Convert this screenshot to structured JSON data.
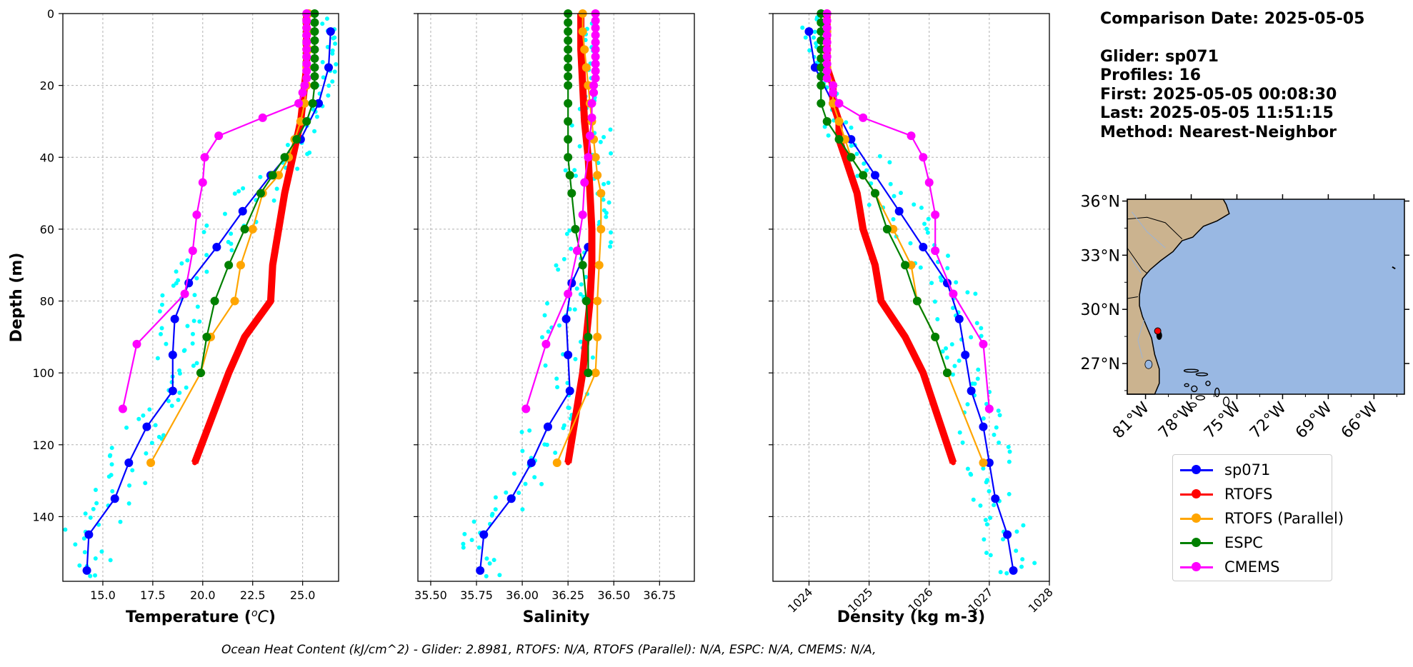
{
  "info": {
    "comparison": "Comparison Date: 2025-05-05",
    "glider": "Glider: sp071",
    "profiles": "Profiles: 16",
    "first": "First: 2025-05-05 00:08:30",
    "last": "Last: 2025-05-05 11:51:15",
    "method": "Method: Nearest-Neighbor"
  },
  "footer": "Ocean Heat Content (kJ/cm^2) - Glider: 2.8981,  RTOFS: N/A,  RTOFS (Parallel): N/A,  ESPC: N/A,  CMEMS: N/A,",
  "legend": [
    {
      "name": "sp071",
      "color": "#0000ff"
    },
    {
      "name": "RTOFS",
      "color": "#ff0000"
    },
    {
      "name": "RTOFS (Parallel)",
      "color": "#ffa500"
    },
    {
      "name": "ESPC",
      "color": "#008000"
    },
    {
      "name": "CMEMS",
      "color": "#ff00ff"
    }
  ],
  "colors": {
    "profiles": "#00ffff",
    "land": "#cbb38f",
    "ocean": "#99b8e3",
    "grid": "#b0b0b0",
    "glider_marker": "#ff0000"
  },
  "map": {
    "lat_ticks": [
      "36°N",
      "33°N",
      "30°N",
      "27°N"
    ],
    "lon_ticks": [
      "81°W",
      "78°W",
      "75°W",
      "72°W",
      "69°W",
      "66°W"
    ],
    "glider_lon": -80.2,
    "glider_lat": 28.8
  },
  "chart_data": [
    {
      "type": "line",
      "xlabel": "Temperature (°C)",
      "ylabel": "Depth (m)",
      "xlim": [
        13,
        26.8
      ],
      "ylim": [
        158,
        0
      ],
      "xticks": [
        15.0,
        17.5,
        20.0,
        22.5,
        25.0
      ],
      "xtick_labels": [
        "15.0",
        "17.5",
        "20.0",
        "22.5",
        "25.0"
      ],
      "yticks": [
        0,
        20,
        40,
        60,
        80,
        100,
        120,
        140
      ],
      "grid": true,
      "series": [
        {
          "name": "sp071",
          "depth": [
            5,
            15,
            25,
            35,
            45,
            55,
            65,
            75,
            85,
            95,
            105,
            115,
            125,
            135,
            145,
            155
          ],
          "values": [
            26.4,
            26.3,
            25.8,
            24.9,
            23.4,
            22.0,
            20.7,
            19.3,
            18.6,
            18.5,
            18.5,
            17.2,
            16.3,
            15.6,
            14.3,
            14.2
          ]
        },
        {
          "name": "RTOFS",
          "depth": [
            0,
            5,
            10,
            15,
            20,
            25,
            30,
            35,
            40,
            50,
            60,
            70,
            80,
            90,
            100,
            125
          ],
          "values": [
            25.2,
            25.2,
            25.2,
            25.2,
            25.1,
            25.0,
            24.9,
            24.7,
            24.5,
            24.1,
            23.8,
            23.5,
            23.4,
            22.1,
            21.3,
            19.6
          ]
        },
        {
          "name": "RTOFS (Parallel)",
          "depth": [
            0,
            5,
            10,
            15,
            20,
            25,
            30,
            35,
            40,
            45,
            50,
            60,
            70,
            80,
            90,
            100,
            125
          ],
          "values": [
            25.3,
            25.3,
            25.3,
            25.2,
            25.2,
            25.1,
            24.9,
            24.6,
            24.3,
            23.8,
            23.0,
            22.5,
            21.9,
            21.6,
            20.4,
            19.9,
            17.4
          ]
        },
        {
          "name": "ESPC",
          "depth": [
            0,
            2.5,
            5,
            7.5,
            10,
            12.5,
            15,
            17.5,
            20,
            25,
            30,
            35,
            40,
            45,
            50,
            60,
            70,
            80,
            90,
            100
          ],
          "values": [
            25.6,
            25.6,
            25.6,
            25.6,
            25.6,
            25.6,
            25.6,
            25.6,
            25.6,
            25.5,
            25.2,
            24.7,
            24.1,
            23.5,
            22.9,
            22.1,
            21.3,
            20.6,
            20.2,
            19.9
          ]
        },
        {
          "name": "CMEMS",
          "depth": [
            0,
            2,
            4,
            6,
            8,
            10,
            12,
            14,
            16,
            18,
            20,
            22,
            25,
            29,
            34,
            40,
            47,
            56,
            66,
            78,
            92,
            110
          ],
          "values": [
            25.2,
            25.2,
            25.2,
            25.2,
            25.2,
            25.2,
            25.2,
            25.2,
            25.2,
            25.2,
            25.1,
            25.0,
            24.8,
            23.0,
            20.8,
            20.1,
            20.0,
            19.7,
            19.5,
            19.1,
            16.7,
            16.0
          ]
        }
      ]
    },
    {
      "type": "line",
      "xlabel": "Salinity",
      "xlim": [
        35.43,
        36.94
      ],
      "ylim": [
        158,
        0
      ],
      "xticks": [
        35.5,
        35.75,
        36.0,
        36.25,
        36.5,
        36.75
      ],
      "xtick_labels": [
        "35.50",
        "35.75",
        "36.00",
        "36.25",
        "36.50",
        "36.75"
      ],
      "yticks": [
        0,
        20,
        40,
        60,
        80,
        100,
        120,
        140
      ],
      "grid": true,
      "series": [
        {
          "name": "sp071",
          "depth": [
            65,
            75,
            85,
            95,
            105,
            115,
            125,
            135,
            145,
            155
          ],
          "values": [
            36.36,
            36.27,
            36.24,
            36.25,
            36.26,
            36.14,
            36.05,
            35.94,
            35.79,
            35.77
          ]
        },
        {
          "name": "RTOFS",
          "depth": [
            0,
            10,
            20,
            30,
            40,
            50,
            60,
            70,
            80,
            90,
            100,
            125
          ],
          "values": [
            36.32,
            36.32,
            36.33,
            36.34,
            36.36,
            36.37,
            36.38,
            36.38,
            36.37,
            36.35,
            36.33,
            36.25
          ]
        },
        {
          "name": "RTOFS (Parallel)",
          "depth": [
            0,
            5,
            10,
            15,
            20,
            25,
            30,
            35,
            40,
            45,
            50,
            60,
            70,
            80,
            90,
            100,
            125
          ],
          "values": [
            36.33,
            36.33,
            36.34,
            36.35,
            36.36,
            36.37,
            36.38,
            36.39,
            36.4,
            36.41,
            36.43,
            36.43,
            36.42,
            36.41,
            36.41,
            36.4,
            36.19
          ]
        },
        {
          "name": "ESPC",
          "depth": [
            0,
            2.5,
            5,
            7.5,
            10,
            12.5,
            15,
            17.5,
            20,
            25,
            30,
            35,
            40,
            45,
            50,
            60,
            70,
            80,
            90,
            100
          ],
          "values": [
            36.25,
            36.25,
            36.25,
            36.25,
            36.25,
            36.25,
            36.25,
            36.25,
            36.25,
            36.25,
            36.25,
            36.25,
            36.25,
            36.26,
            36.27,
            36.29,
            36.33,
            36.35,
            36.36,
            36.36
          ]
        },
        {
          "name": "CMEMS",
          "depth": [
            0,
            2,
            4,
            6,
            8,
            10,
            12,
            14,
            16,
            18,
            20,
            22,
            25,
            29,
            34,
            40,
            47,
            56,
            66,
            78,
            92,
            110
          ],
          "values": [
            36.4,
            36.4,
            36.4,
            36.4,
            36.4,
            36.4,
            36.4,
            36.4,
            36.4,
            36.4,
            36.39,
            36.39,
            36.38,
            36.38,
            36.37,
            36.36,
            36.34,
            36.33,
            36.3,
            36.25,
            36.13,
            36.02
          ]
        }
      ]
    },
    {
      "type": "line",
      "xlabel": "Density (kg m-3)",
      "xlim": [
        1023.4,
        1028.0
      ],
      "ylim": [
        158,
        0
      ],
      "xticks": [
        1024,
        1025,
        1026,
        1027,
        1028
      ],
      "xtick_labels": [
        "1024",
        "1025",
        "1026",
        "1027",
        "1028"
      ],
      "yticks": [
        0,
        20,
        40,
        60,
        80,
        100,
        120,
        140
      ],
      "grid": true,
      "series": [
        {
          "name": "sp071",
          "depth": [
            5,
            15,
            25,
            35,
            45,
            55,
            65,
            75,
            85,
            95,
            105,
            115,
            125,
            135,
            145,
            155
          ],
          "values": [
            1024.0,
            1024.1,
            1024.4,
            1024.7,
            1025.1,
            1025.5,
            1025.9,
            1026.3,
            1026.5,
            1026.6,
            1026.7,
            1026.9,
            1027.0,
            1027.1,
            1027.3,
            1027.4
          ]
        },
        {
          "name": "RTOFS",
          "depth": [
            0,
            5,
            10,
            15,
            20,
            25,
            30,
            35,
            40,
            50,
            60,
            70,
            80,
            90,
            100,
            125
          ],
          "values": [
            1024.3,
            1024.3,
            1024.3,
            1024.3,
            1024.4,
            1024.4,
            1024.5,
            1024.5,
            1024.6,
            1024.8,
            1024.9,
            1025.1,
            1025.2,
            1025.6,
            1025.9,
            1026.4
          ]
        },
        {
          "name": "RTOFS (Parallel)",
          "depth": [
            0,
            5,
            10,
            15,
            20,
            25,
            30,
            35,
            40,
            45,
            50,
            60,
            70,
            80,
            90,
            100,
            125
          ],
          "values": [
            1024.3,
            1024.3,
            1024.3,
            1024.3,
            1024.4,
            1024.4,
            1024.5,
            1024.6,
            1024.7,
            1024.9,
            1025.1,
            1025.4,
            1025.7,
            1025.8,
            1026.1,
            1026.3,
            1026.9
          ]
        },
        {
          "name": "ESPC",
          "depth": [
            0,
            2.5,
            5,
            7.5,
            10,
            12.5,
            15,
            17.5,
            20,
            25,
            30,
            35,
            40,
            45,
            50,
            60,
            70,
            80,
            90,
            100
          ],
          "values": [
            1024.2,
            1024.2,
            1024.2,
            1024.2,
            1024.2,
            1024.2,
            1024.2,
            1024.2,
            1024.2,
            1024.2,
            1024.3,
            1024.5,
            1024.7,
            1024.9,
            1025.1,
            1025.3,
            1025.6,
            1025.8,
            1026.1,
            1026.3
          ]
        },
        {
          "name": "CMEMS",
          "depth": [
            0,
            2,
            4,
            6,
            8,
            10,
            12,
            14,
            16,
            18,
            20,
            22,
            25,
            29,
            34,
            40,
            47,
            56,
            66,
            78,
            92,
            110
          ],
          "values": [
            1024.3,
            1024.3,
            1024.3,
            1024.3,
            1024.3,
            1024.3,
            1024.3,
            1024.3,
            1024.3,
            1024.3,
            1024.4,
            1024.4,
            1024.5,
            1024.9,
            1025.7,
            1025.9,
            1026.0,
            1026.1,
            1026.1,
            1026.4,
            1026.9,
            1027.0
          ]
        }
      ]
    }
  ]
}
